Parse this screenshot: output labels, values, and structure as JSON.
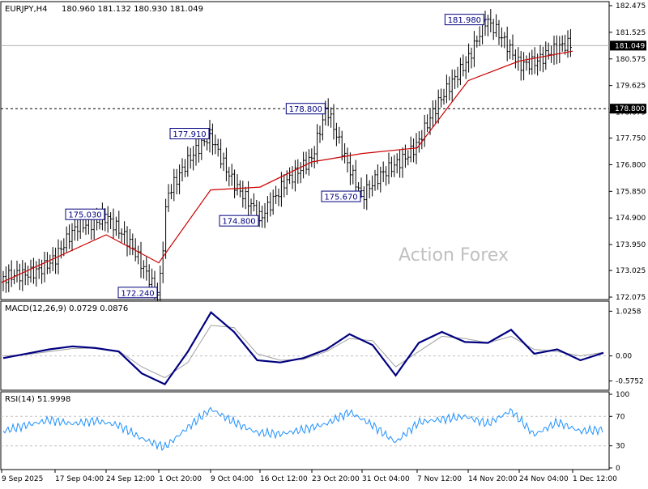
{
  "header": {
    "symbol": "EURJPY,H4",
    "ohlc": "180.960 181.132 180.930 181.049"
  },
  "watermark": "Action Forex",
  "chart_data": [
    {
      "type": "candlestick",
      "title": "EURJPY,H4",
      "x": [
        "9 Sep 2025",
        "17 Sep 04:00",
        "24 Sep 12:00",
        "1 Oct 20:00",
        "9 Oct 04:00",
        "16 Oct 12:00",
        "23 Oct 20:00",
        "31 Oct 04:00",
        "7 Nov 12:00",
        "14 Nov 20:00",
        "24 Nov 04:00",
        "1 Dec 12:00"
      ],
      "y_ticks": [
        "182.475",
        "181.525",
        "180.575",
        "179.625",
        "178.675",
        "177.750",
        "176.800",
        "175.850",
        "174.900",
        "173.950",
        "173.025",
        "172.075"
      ],
      "ylim": [
        172.075,
        182.475
      ],
      "price": [
        {
          "date": "9 Sep 2025",
          "value": 172.6
        },
        {
          "date": "17 Sep 04:00",
          "value": 173.4
        },
        {
          "date": "20 Sep 12:00",
          "value": 174.6
        },
        {
          "date": "24 Sep 12:00",
          "value": 175.03
        },
        {
          "date": "28 Sep 00:00",
          "value": 173.8
        },
        {
          "date": "1 Oct 20:00",
          "value": 172.24
        },
        {
          "date": "3 Oct 00:00",
          "value": 175.8
        },
        {
          "date": "9 Oct 04:00",
          "value": 177.91
        },
        {
          "date": "13 Oct 00:00",
          "value": 176.0
        },
        {
          "date": "16 Oct 12:00",
          "value": 174.8
        },
        {
          "date": "20 Oct 00:00",
          "value": 176.3
        },
        {
          "date": "23 Oct 20:00",
          "value": 176.9
        },
        {
          "date": "26 Oct 00:00",
          "value": 178.8
        },
        {
          "date": "31 Oct 04:00",
          "value": 175.67
        },
        {
          "date": "7 Nov 12:00",
          "value": 177.6
        },
        {
          "date": "14 Nov 20:00",
          "value": 180.7
        },
        {
          "date": "18 Nov 00:00",
          "value": 181.98
        },
        {
          "date": "24 Nov 04:00",
          "value": 180.4
        },
        {
          "date": "1 Dec 12:00",
          "value": 181.049
        }
      ],
      "moving_average": [
        {
          "date": "9 Sep 2025",
          "value": 172.6
        },
        {
          "date": "24 Sep 12:00",
          "value": 174.3
        },
        {
          "date": "1 Oct 20:00",
          "value": 173.3
        },
        {
          "date": "9 Oct 04:00",
          "value": 175.9
        },
        {
          "date": "16 Oct 12:00",
          "value": 176.0
        },
        {
          "date": "23 Oct 20:00",
          "value": 176.9
        },
        {
          "date": "31 Oct 04:00",
          "value": 177.2
        },
        {
          "date": "7 Nov 12:00",
          "value": 177.4
        },
        {
          "date": "14 Nov 20:00",
          "value": 179.8
        },
        {
          "date": "24 Nov 04:00",
          "value": 180.5
        },
        {
          "date": "1 Dec 12:00",
          "value": 180.85
        }
      ],
      "current_price_label": "181.049",
      "current_price": 181.049,
      "level_line_label": "178.800",
      "level_line": 178.8,
      "callouts": [
        {
          "text": "175.030",
          "date": "24 Sep 12:00",
          "value": 175.03
        },
        {
          "text": "172.240",
          "date": "1 Oct 20:00",
          "value": 172.24
        },
        {
          "text": "177.910",
          "date": "9 Oct 04:00",
          "value": 177.91
        },
        {
          "text": "174.800",
          "date": "16 Oct 12:00",
          "value": 174.8
        },
        {
          "text": "178.800",
          "date": "26 Oct 00:00",
          "value": 178.8
        },
        {
          "text": "175.670",
          "date": "31 Oct 04:00",
          "value": 175.67
        },
        {
          "text": "181.980",
          "date": "18 Nov 00:00",
          "value": 181.98
        }
      ],
      "colors": {
        "bars": "#000000",
        "ma": "#cc0000",
        "callout": "#000080"
      }
    },
    {
      "type": "line",
      "title": "MACD(12,26,9) 0.0729 0.0876",
      "y_ticks": [
        "1.0258",
        "0.00",
        "-0.5752"
      ],
      "ylim": [
        -0.75,
        1.2
      ],
      "macd": [
        -0.05,
        0.05,
        0.15,
        0.22,
        0.18,
        0.1,
        -0.4,
        -0.65,
        0.1,
        1.0,
        0.55,
        -0.1,
        -0.15,
        -0.05,
        0.15,
        0.5,
        0.25,
        -0.45,
        0.3,
        0.55,
        0.32,
        0.3,
        0.6,
        0.05,
        0.15,
        -0.1,
        0.07
      ],
      "signal": [
        0.0,
        0.03,
        0.1,
        0.17,
        0.18,
        0.12,
        -0.25,
        -0.5,
        -0.15,
        0.7,
        0.65,
        0.05,
        -0.1,
        -0.08,
        0.1,
        0.4,
        0.35,
        -0.25,
        0.1,
        0.45,
        0.4,
        0.3,
        0.45,
        0.15,
        0.1,
        0.0,
        0.08
      ],
      "colors": {
        "macd": "#000080",
        "signal": "#a0a0a0"
      }
    },
    {
      "type": "line",
      "title": "RSI(14) 51.9998",
      "y_ticks": [
        "100",
        "70",
        "30",
        "0"
      ],
      "ylim": [
        0,
        100
      ],
      "levels": [
        70,
        30
      ],
      "values": [
        50,
        58,
        65,
        60,
        64,
        58,
        40,
        28,
        55,
        80,
        62,
        48,
        46,
        52,
        60,
        76,
        58,
        35,
        62,
        66,
        70,
        60,
        78,
        45,
        62,
        50,
        52
      ],
      "colors": {
        "rsi": "#1e90ff"
      }
    }
  ]
}
